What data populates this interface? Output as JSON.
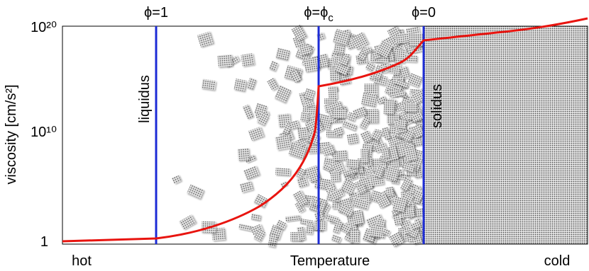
{
  "y_axis": {
    "label": "viscosity [cm/s²]",
    "ticks": [
      "10²⁰",
      "10¹⁰",
      "1"
    ]
  },
  "x_axis": {
    "label": "Temperature",
    "left": "hot",
    "right": "cold"
  },
  "markers": [
    {
      "label": "ϕ=1"
    },
    {
      "label": "ϕ=ϕ",
      "subscript": "c"
    },
    {
      "label": "ϕ=0"
    }
  ],
  "lines": {
    "liquidus": "liquidus",
    "solidus": "solidus"
  }
}
